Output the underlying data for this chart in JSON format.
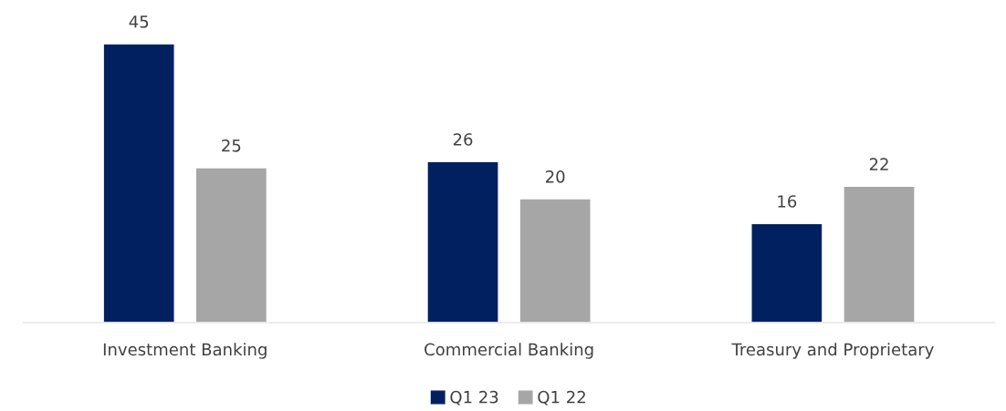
{
  "chart_data": {
    "type": "bar",
    "categories": [
      "Investment Banking",
      "Commercial Banking",
      "Treasury and Proprietary"
    ],
    "series": [
      {
        "name": "Q1 23",
        "color": "#002060",
        "values": [
          45,
          26,
          16
        ]
      },
      {
        "name": "Q1 22",
        "color": "#a6a6a6",
        "values": [
          25,
          20,
          22
        ]
      }
    ],
    "data_labels": true,
    "legend": "bottom",
    "grid": false
  }
}
